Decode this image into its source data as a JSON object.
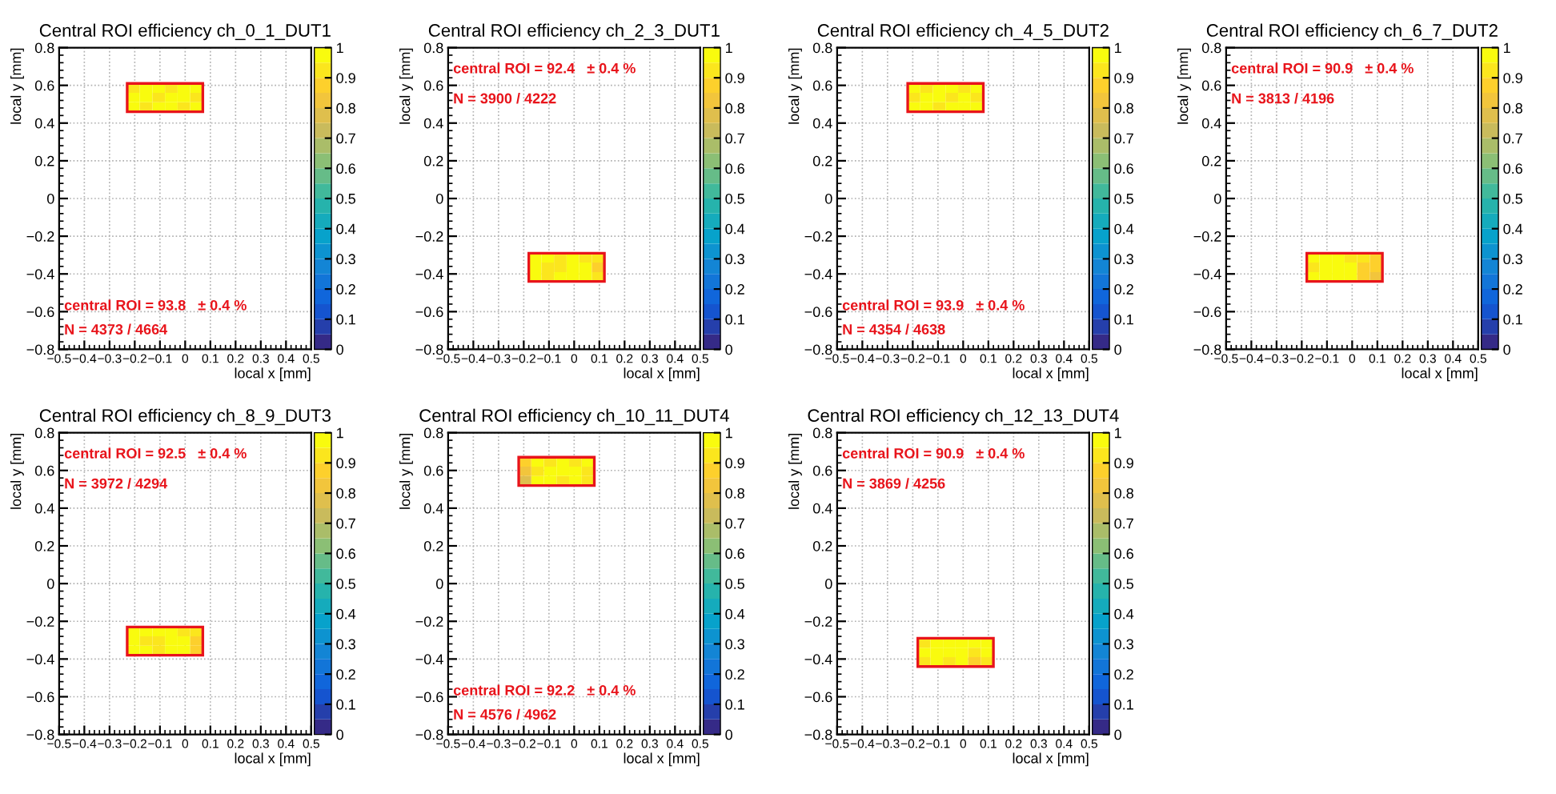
{
  "chart_data": [
    {
      "type": "scatter",
      "marker": "square",
      "grid": true,
      "title": "Central ROI efficiency ch_0_1_DUT1",
      "xlabel": "local x [mm]",
      "ylabel": "local y [mm]",
      "annotations": [
        "central ROI = 93.8   ± 0.4 %",
        "N = 4373 / 4664"
      ],
      "xlim": [
        -0.5,
        0.5
      ],
      "ylim": [
        -0.8,
        0.8
      ],
      "xticks": [
        -0.5,
        -0.4,
        -0.3,
        -0.2,
        -0.1,
        0,
        0.1,
        0.2,
        0.3,
        0.4,
        0.5
      ],
      "yticks": [
        -0.8,
        -0.6,
        -0.4,
        -0.2,
        0,
        0.2,
        0.4,
        0.6,
        0.8
      ],
      "clim": [
        0,
        1
      ],
      "cticks": [
        0,
        0.1,
        0.2,
        0.3,
        0.4,
        0.5,
        0.6,
        0.7,
        0.8,
        0.9,
        1
      ],
      "x": [
        -0.205,
        -0.155,
        -0.105,
        -0.055,
        -0.005,
        0.045,
        -0.205,
        -0.155,
        -0.105,
        -0.055,
        -0.005,
        0.045,
        -0.205,
        -0.155,
        -0.105,
        -0.055,
        -0.005,
        0.045
      ],
      "values": [
        0.485,
        0.485,
        0.485,
        0.485,
        0.485,
        0.485,
        0.535,
        0.535,
        0.535,
        0.535,
        0.535,
        0.535,
        0.585,
        0.585,
        0.585,
        0.585,
        0.585,
        0.585
      ],
      "cvalues": [
        0.95,
        0.93,
        0.95,
        0.95,
        0.93,
        0.95,
        0.95,
        0.95,
        0.92,
        0.95,
        0.95,
        0.93,
        0.93,
        0.95,
        0.95,
        0.92,
        0.95,
        0.95
      ]
    },
    {
      "type": "scatter",
      "marker": "square",
      "grid": true,
      "title": "Central ROI efficiency ch_2_3_DUT1",
      "xlabel": "local x [mm]",
      "ylabel": "local y [mm]",
      "annotations": [
        "central ROI = 92.4   ± 0.4 %",
        "N = 3900 / 4222"
      ],
      "xlim": [
        -0.5,
        0.5
      ],
      "ylim": [
        -0.8,
        0.8
      ],
      "xticks": [
        -0.5,
        -0.4,
        -0.3,
        -0.2,
        -0.1,
        0,
        0.1,
        0.2,
        0.3,
        0.4,
        0.5
      ],
      "yticks": [
        -0.8,
        -0.6,
        -0.4,
        -0.2,
        0,
        0.2,
        0.4,
        0.6,
        0.8
      ],
      "clim": [
        0,
        1
      ],
      "cticks": [
        0,
        0.1,
        0.2,
        0.3,
        0.4,
        0.5,
        0.6,
        0.7,
        0.8,
        0.9,
        1
      ],
      "x": [
        -0.155,
        -0.105,
        -0.055,
        -0.005,
        0.045,
        0.095,
        -0.155,
        -0.105,
        -0.055,
        -0.005,
        0.045,
        0.095,
        -0.155,
        -0.105,
        -0.055,
        -0.005,
        0.045,
        0.095
      ],
      "values": [
        -0.415,
        -0.415,
        -0.415,
        -0.415,
        -0.415,
        -0.415,
        -0.365,
        -0.365,
        -0.365,
        -0.365,
        -0.365,
        -0.365,
        -0.315,
        -0.315,
        -0.315,
        -0.315,
        -0.315,
        -0.315
      ],
      "cvalues": [
        0.95,
        0.93,
        0.95,
        0.95,
        0.95,
        0.9,
        0.95,
        0.92,
        0.93,
        0.95,
        0.95,
        0.85,
        0.95,
        0.95,
        0.93,
        0.95,
        0.93,
        0.92
      ]
    },
    {
      "type": "scatter",
      "marker": "square",
      "grid": true,
      "title": "Central ROI efficiency ch_4_5_DUT2",
      "xlabel": "local x [mm]",
      "ylabel": "local y [mm]",
      "annotations": [
        "central ROI = 93.9   ± 0.4 %",
        "N = 4354 / 4638"
      ],
      "xlim": [
        -0.5,
        0.5
      ],
      "ylim": [
        -0.8,
        0.8
      ],
      "xticks": [
        -0.5,
        -0.4,
        -0.3,
        -0.2,
        -0.1,
        0,
        0.1,
        0.2,
        0.3,
        0.4,
        0.5
      ],
      "yticks": [
        -0.8,
        -0.6,
        -0.4,
        -0.2,
        0,
        0.2,
        0.4,
        0.6,
        0.8
      ],
      "clim": [
        0,
        1
      ],
      "cticks": [
        0,
        0.1,
        0.2,
        0.3,
        0.4,
        0.5,
        0.6,
        0.7,
        0.8,
        0.9,
        1
      ],
      "x": [
        -0.195,
        -0.145,
        -0.095,
        -0.045,
        0.005,
        0.055,
        -0.195,
        -0.145,
        -0.095,
        -0.045,
        0.005,
        0.055,
        -0.195,
        -0.145,
        -0.095,
        -0.045,
        0.005,
        0.055
      ],
      "values": [
        0.485,
        0.485,
        0.485,
        0.485,
        0.485,
        0.485,
        0.535,
        0.535,
        0.535,
        0.535,
        0.535,
        0.535,
        0.585,
        0.585,
        0.585,
        0.585,
        0.585,
        0.585
      ],
      "cvalues": [
        0.95,
        0.95,
        0.93,
        0.95,
        0.95,
        0.95,
        0.93,
        0.95,
        0.95,
        0.92,
        0.95,
        0.93,
        0.95,
        0.93,
        0.95,
        0.95,
        0.92,
        0.95
      ]
    },
    {
      "type": "scatter",
      "marker": "square",
      "grid": true,
      "title": "Central ROI efficiency ch_6_7_DUT2",
      "xlabel": "local x [mm]",
      "ylabel": "local y [mm]",
      "annotations": [
        "central ROI = 90.9   ± 0.4 %",
        "N = 3813 / 4196"
      ],
      "xlim": [
        -0.5,
        0.5
      ],
      "ylim": [
        -0.8,
        0.8
      ],
      "xticks": [
        -0.5,
        -0.4,
        -0.3,
        -0.2,
        -0.1,
        0,
        0.1,
        0.2,
        0.3,
        0.4,
        0.5
      ],
      "yticks": [
        -0.8,
        -0.6,
        -0.4,
        -0.2,
        0,
        0.2,
        0.4,
        0.6,
        0.8
      ],
      "clim": [
        0,
        1
      ],
      "cticks": [
        0,
        0.1,
        0.2,
        0.3,
        0.4,
        0.5,
        0.6,
        0.7,
        0.8,
        0.9,
        1
      ],
      "x": [
        -0.155,
        -0.105,
        -0.055,
        -0.005,
        0.045,
        0.095,
        -0.155,
        -0.105,
        -0.055,
        -0.005,
        0.045,
        0.095,
        -0.155,
        -0.105,
        -0.055,
        -0.005,
        0.045,
        0.095
      ],
      "values": [
        -0.415,
        -0.415,
        -0.415,
        -0.415,
        -0.415,
        -0.415,
        -0.365,
        -0.365,
        -0.365,
        -0.365,
        -0.365,
        -0.365,
        -0.315,
        -0.315,
        -0.315,
        -0.315,
        -0.315,
        -0.315
      ],
      "cvalues": [
        0.95,
        0.95,
        0.95,
        0.95,
        0.85,
        0.83,
        0.93,
        0.95,
        0.95,
        0.95,
        0.88,
        0.85,
        0.95,
        0.95,
        0.95,
        0.93,
        0.9,
        0.88
      ]
    },
    {
      "type": "scatter",
      "marker": "square",
      "grid": true,
      "title": "Central ROI efficiency ch_8_9_DUT3",
      "xlabel": "local x [mm]",
      "ylabel": "local y [mm]",
      "annotations": [
        "central ROI = 92.5   ± 0.4 %",
        "N = 3972 / 4294"
      ],
      "xlim": [
        -0.5,
        0.5
      ],
      "ylim": [
        -0.8,
        0.8
      ],
      "xticks": [
        -0.5,
        -0.4,
        -0.3,
        -0.2,
        -0.1,
        0,
        0.1,
        0.2,
        0.3,
        0.4,
        0.5
      ],
      "yticks": [
        -0.8,
        -0.6,
        -0.4,
        -0.2,
        0,
        0.2,
        0.4,
        0.6,
        0.8
      ],
      "clim": [
        0,
        1
      ],
      "cticks": [
        0,
        0.1,
        0.2,
        0.3,
        0.4,
        0.5,
        0.6,
        0.7,
        0.8,
        0.9,
        1
      ],
      "x": [
        -0.205,
        -0.155,
        -0.105,
        -0.055,
        -0.005,
        0.045,
        -0.205,
        -0.155,
        -0.105,
        -0.055,
        -0.005,
        0.045,
        -0.205,
        -0.155,
        -0.105,
        -0.055,
        -0.005,
        0.045
      ],
      "values": [
        -0.355,
        -0.355,
        -0.355,
        -0.355,
        -0.355,
        -0.355,
        -0.305,
        -0.305,
        -0.305,
        -0.305,
        -0.305,
        -0.305,
        -0.255,
        -0.255,
        -0.255,
        -0.255,
        -0.255,
        -0.255
      ],
      "cvalues": [
        0.95,
        0.95,
        0.93,
        0.95,
        0.95,
        0.88,
        0.95,
        0.93,
        0.9,
        0.95,
        0.95,
        0.88,
        0.95,
        0.95,
        0.95,
        0.95,
        0.93,
        0.9
      ]
    },
    {
      "type": "scatter",
      "marker": "square",
      "grid": true,
      "title": "Central ROI efficiency ch_10_11_DUT4",
      "xlabel": "local x [mm]",
      "ylabel": "local y [mm]",
      "annotations": [
        "central ROI = 92.2   ± 0.4 %",
        "N = 4576 / 4962"
      ],
      "xlim": [
        -0.5,
        0.5
      ],
      "ylim": [
        -0.8,
        0.8
      ],
      "xticks": [
        -0.5,
        -0.4,
        -0.3,
        -0.2,
        -0.1,
        0,
        0.1,
        0.2,
        0.3,
        0.4,
        0.5
      ],
      "yticks": [
        -0.8,
        -0.6,
        -0.4,
        -0.2,
        0,
        0.2,
        0.4,
        0.6,
        0.8
      ],
      "clim": [
        0,
        1
      ],
      "cticks": [
        0,
        0.1,
        0.2,
        0.3,
        0.4,
        0.5,
        0.6,
        0.7,
        0.8,
        0.9,
        1
      ],
      "x": [
        -0.195,
        -0.145,
        -0.095,
        -0.045,
        0.005,
        0.055,
        -0.195,
        -0.145,
        -0.095,
        -0.045,
        0.005,
        0.055,
        -0.195,
        -0.145,
        -0.095,
        -0.045,
        0.005,
        0.055
      ],
      "values": [
        0.545,
        0.545,
        0.545,
        0.545,
        0.545,
        0.545,
        0.595,
        0.595,
        0.595,
        0.595,
        0.595,
        0.595,
        0.645,
        0.645,
        0.645,
        0.645,
        0.645,
        0.645
      ],
      "cvalues": [
        0.78,
        0.95,
        0.95,
        0.93,
        0.95,
        0.93,
        0.8,
        0.93,
        0.95,
        0.95,
        0.95,
        0.9,
        0.85,
        0.95,
        0.92,
        0.95,
        0.93,
        0.95
      ]
    },
    {
      "type": "scatter",
      "marker": "square",
      "grid": true,
      "title": "Central ROI efficiency ch_12_13_DUT4",
      "xlabel": "local x [mm]",
      "ylabel": "local y [mm]",
      "annotations": [
        "central ROI = 90.9   ± 0.4 %",
        "N = 3869 / 4256"
      ],
      "xlim": [
        -0.5,
        0.5
      ],
      "ylim": [
        -0.8,
        0.8
      ],
      "xticks": [
        -0.5,
        -0.4,
        -0.3,
        -0.2,
        -0.1,
        0,
        0.1,
        0.2,
        0.3,
        0.4,
        0.5
      ],
      "yticks": [
        -0.8,
        -0.6,
        -0.4,
        -0.2,
        0,
        0.2,
        0.4,
        0.6,
        0.8
      ],
      "clim": [
        0,
        1
      ],
      "cticks": [
        0,
        0.1,
        0.2,
        0.3,
        0.4,
        0.5,
        0.6,
        0.7,
        0.8,
        0.9,
        1
      ],
      "x": [
        -0.155,
        -0.105,
        -0.055,
        -0.005,
        0.045,
        0.095,
        -0.155,
        -0.105,
        -0.055,
        -0.005,
        0.045,
        0.095,
        -0.155,
        -0.105,
        -0.055,
        -0.005,
        0.045,
        0.095
      ],
      "values": [
        -0.415,
        -0.415,
        -0.415,
        -0.415,
        -0.415,
        -0.415,
        -0.365,
        -0.365,
        -0.365,
        -0.365,
        -0.365,
        -0.365,
        -0.315,
        -0.315,
        -0.315,
        -0.315,
        -0.315,
        -0.315
      ],
      "cvalues": [
        0.93,
        0.95,
        0.92,
        0.95,
        0.88,
        0.93,
        0.95,
        0.95,
        0.95,
        0.95,
        0.92,
        0.95,
        0.93,
        0.95,
        0.95,
        0.95,
        0.95,
        0.95
      ]
    }
  ]
}
